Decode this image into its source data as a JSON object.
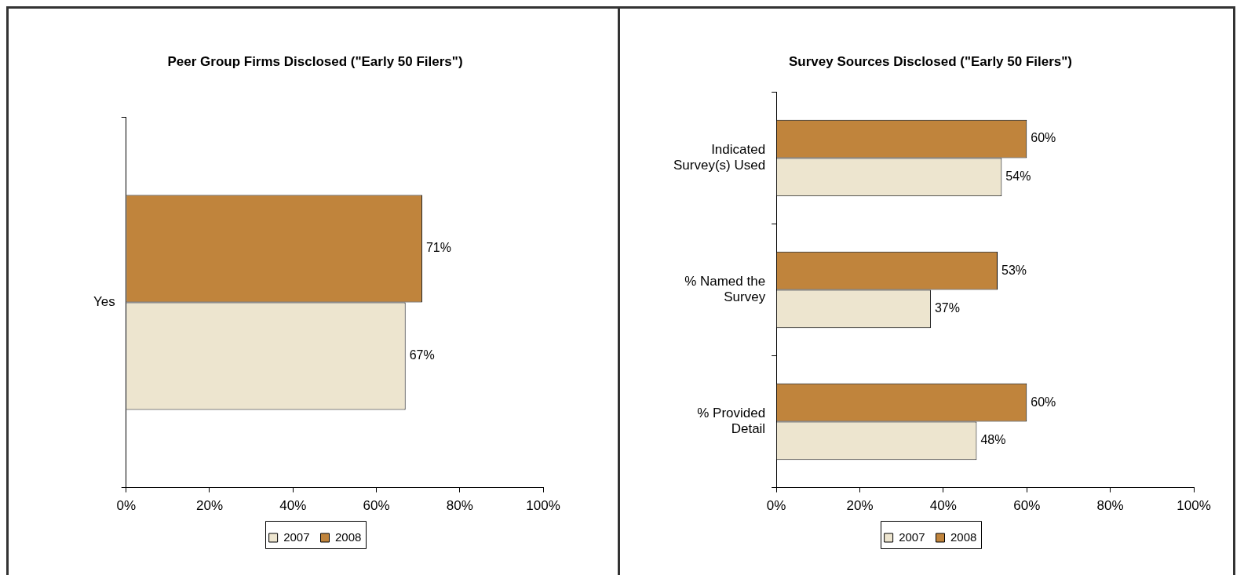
{
  "chart_data": [
    {
      "type": "bar",
      "orientation": "horizontal",
      "title": "Peer Group Firms Disclosed (\"Early 50 Filers\")",
      "categories": [
        "Yes"
      ],
      "series": [
        {
          "name": "2007",
          "color": "#ede5cf",
          "values": [
            67
          ],
          "value_labels": [
            "67%"
          ]
        },
        {
          "name": "2008",
          "color": "#c0843c",
          "values": [
            71
          ],
          "value_labels": [
            "71%"
          ]
        }
      ],
      "xlim": [
        0,
        100
      ],
      "xticks": [
        {
          "value": 0,
          "label": "0%"
        },
        {
          "value": 20,
          "label": "20%"
        },
        {
          "value": 40,
          "label": "40%"
        },
        {
          "value": 60,
          "label": "60%"
        },
        {
          "value": 80,
          "label": "80%"
        },
        {
          "value": 100,
          "label": "100%"
        }
      ],
      "grid": false,
      "legend": "bottom"
    },
    {
      "type": "bar",
      "orientation": "horizontal",
      "title": "Survey Sources Disclosed (\"Early 50 Filers\")",
      "categories": [
        "Indicated Survey(s) Used",
        "% Named the Survey",
        "% Provided Detail"
      ],
      "series": [
        {
          "name": "2007",
          "color": "#ede5cf",
          "values": [
            54,
            37,
            48
          ],
          "value_labels": [
            "54%",
            "37%",
            "48%"
          ]
        },
        {
          "name": "2008",
          "color": "#c0843c",
          "values": [
            60,
            53,
            60
          ],
          "value_labels": [
            "60%",
            "53%",
            "60%"
          ]
        }
      ],
      "xlim": [
        0,
        100
      ],
      "xticks": [
        {
          "value": 0,
          "label": "0%"
        },
        {
          "value": 20,
          "label": "20%"
        },
        {
          "value": 40,
          "label": "40%"
        },
        {
          "value": 60,
          "label": "60%"
        },
        {
          "value": 80,
          "label": "80%"
        },
        {
          "value": 100,
          "label": "100%"
        }
      ],
      "grid": false,
      "legend": "bottom"
    }
  ]
}
